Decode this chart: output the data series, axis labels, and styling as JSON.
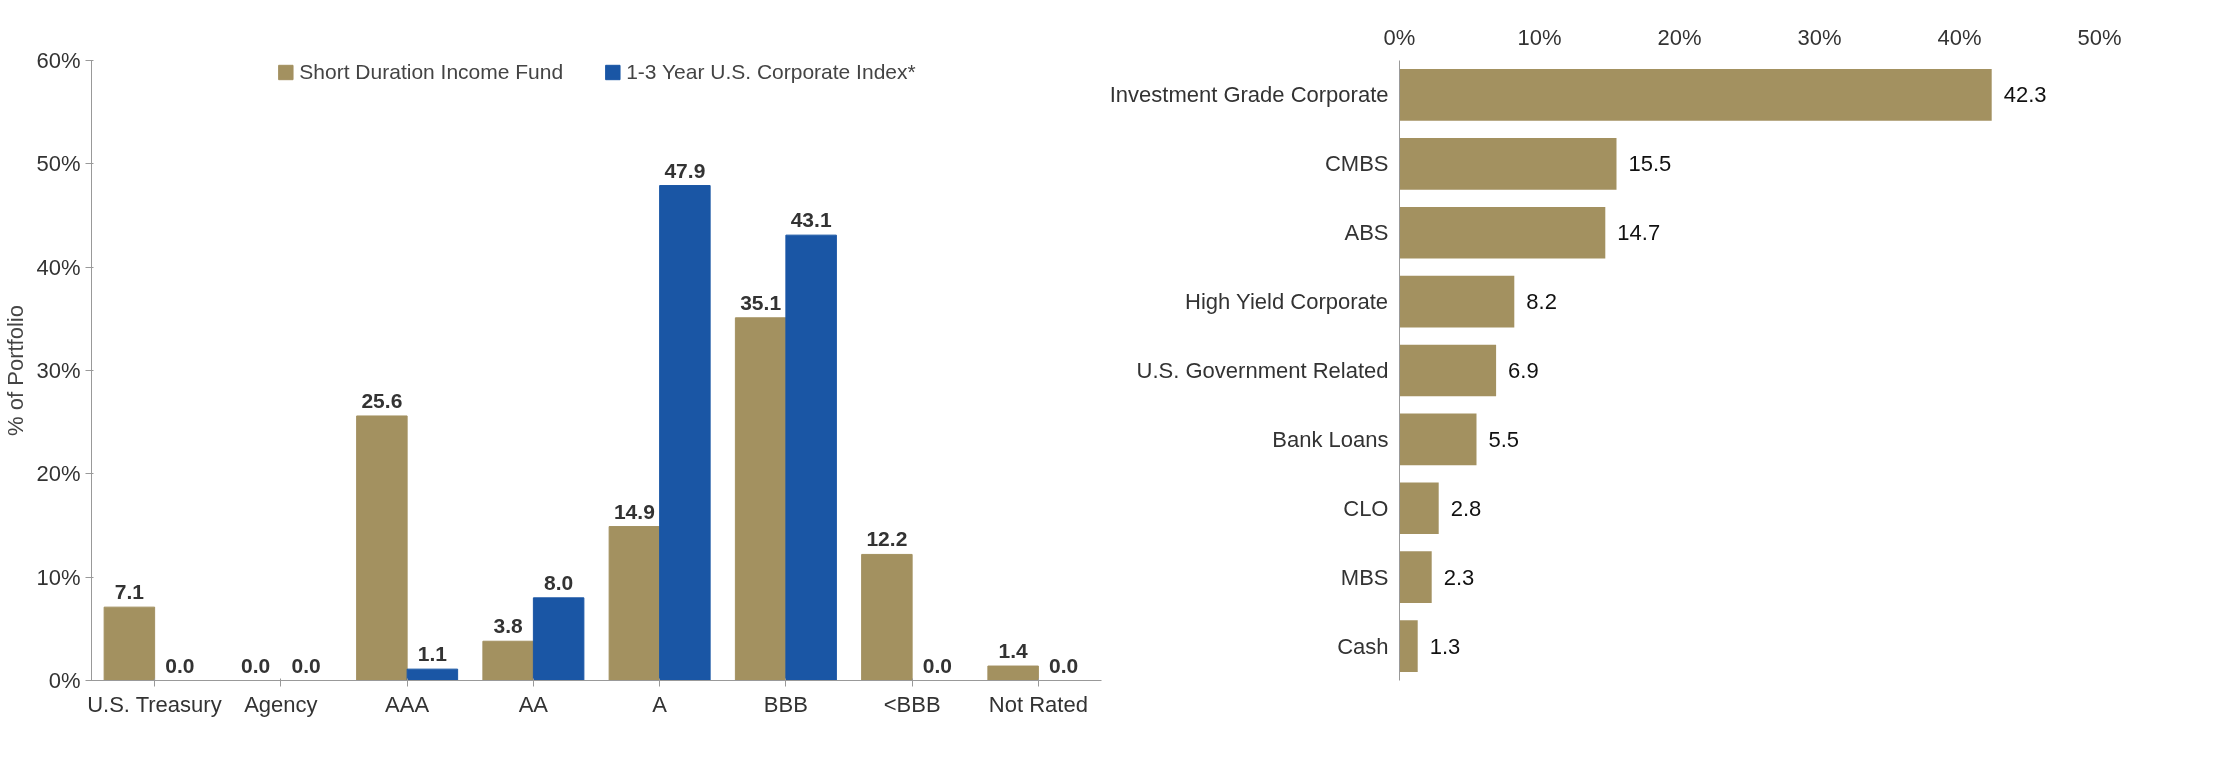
{
  "chart_data": [
    {
      "type": "bar",
      "ylabel": "% of Portfolio",
      "categories": [
        "U.S. Treasury",
        "Agency",
        "AAA",
        "AA",
        "A",
        "BBB",
        "<BBB",
        "Not Rated"
      ],
      "series": [
        {
          "name": "Short Duration Income Fund",
          "color": "#a39160",
          "values": [
            7.1,
            0.0,
            25.6,
            3.8,
            14.9,
            35.1,
            12.2,
            1.4
          ],
          "value_labels": [
            "7.1",
            "0.0",
            "25.6",
            "3.8",
            "14.9",
            "35.1",
            "12.2",
            "1.4"
          ]
        },
        {
          "name": "1-3 Year U.S. Corporate Index*",
          "color": "#1a56a5",
          "values": [
            0.0,
            0.0,
            1.1,
            8.0,
            47.9,
            43.1,
            0.0,
            0.0
          ],
          "value_labels": [
            "0.0",
            "0.0",
            "1.1",
            "8.0",
            "47.9",
            "43.1",
            "0.0",
            "0.0"
          ]
        }
      ],
      "ylim": [
        0,
        60
      ],
      "yticks": [
        {
          "value": 0,
          "label": "0%"
        },
        {
          "value": 10,
          "label": "10%"
        },
        {
          "value": 20,
          "label": "20%"
        },
        {
          "value": 30,
          "label": "30%"
        },
        {
          "value": 40,
          "label": "40%"
        },
        {
          "value": 50,
          "label": "50%"
        },
        {
          "value": 60,
          "label": "60%"
        }
      ],
      "data_labels": true,
      "grid": false,
      "legend": "top"
    },
    {
      "type": "bar",
      "orientation": "horizontal",
      "categories": [
        "Investment Grade Corporate",
        "CMBS",
        "ABS",
        "High Yield Corporate",
        "U.S. Government Related",
        "Bank Loans",
        "CLO",
        "MBS",
        "Cash"
      ],
      "values": [
        42.3,
        15.5,
        14.7,
        8.2,
        6.9,
        5.5,
        2.8,
        2.3,
        1.3
      ],
      "color": "#a39160",
      "xlim": [
        0,
        50
      ],
      "xticks": [
        {
          "value": 0,
          "label": "0%"
        },
        {
          "value": 10,
          "label": "10%"
        },
        {
          "value": 20,
          "label": "20%"
        },
        {
          "value": 30,
          "label": "30%"
        },
        {
          "value": 40,
          "label": "40%"
        },
        {
          "value": 50,
          "label": "50%"
        }
      ],
      "data_labels": true,
      "grid": false
    }
  ]
}
